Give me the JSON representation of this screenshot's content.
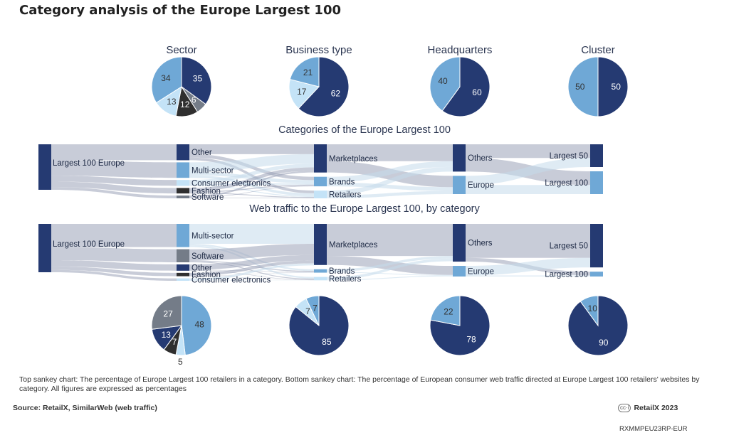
{
  "title": "Category analysis of the Europe Largest 100",
  "colors": {
    "dark_navy": "#253a72",
    "medium_blue": "#6fa8d6",
    "light_blue": "#c4e3f7",
    "black": "#2f2f2f",
    "gray": "#747c88",
    "flow_gray": "#9aa3b8",
    "flow_light": "#c4dbeb"
  },
  "chart_data": [
    {
      "type": "pie",
      "title": "Sector",
      "slices": [
        {
          "label": "35",
          "value": 35,
          "color": "#253a72"
        },
        {
          "label": "6",
          "value": 6,
          "color": "#747c88"
        },
        {
          "label": "12",
          "value": 12,
          "color": "#2f2f2f"
        },
        {
          "label": "13",
          "value": 13,
          "color": "#c4e3f7"
        },
        {
          "label": "34",
          "value": 34,
          "color": "#6fa8d6"
        }
      ]
    },
    {
      "type": "pie",
      "title": "Business type",
      "slices": [
        {
          "label": "62",
          "value": 62,
          "color": "#253a72"
        },
        {
          "label": "17",
          "value": 17,
          "color": "#c4e3f7"
        },
        {
          "label": "21",
          "value": 21,
          "color": "#6fa8d6"
        }
      ]
    },
    {
      "type": "pie",
      "title": "Headquarters",
      "slices": [
        {
          "label": "60",
          "value": 60,
          "color": "#253a72"
        },
        {
          "label": "40",
          "value": 40,
          "color": "#6fa8d6"
        }
      ]
    },
    {
      "type": "pie",
      "title": "Cluster",
      "slices": [
        {
          "label": "50",
          "value": 50,
          "color": "#253a72"
        },
        {
          "label": "50",
          "value": 50,
          "color": "#6fa8d6"
        }
      ]
    },
    {
      "type": "sankey",
      "title": "Categories of the Europe Largest 100",
      "stages": [
        [
          {
            "label": "Largest 100 Europe",
            "value": 100,
            "color": "#253a72"
          }
        ],
        [
          {
            "label": "Other",
            "value": 35,
            "color": "#253a72"
          },
          {
            "label": "Multi-sector",
            "value": 34,
            "color": "#6fa8d6"
          },
          {
            "label": "Consumer electronics",
            "value": 13,
            "color": "#c4e3f7"
          },
          {
            "label": "Fashion",
            "value": 12,
            "color": "#2f2f2f"
          },
          {
            "label": "Software",
            "value": 6,
            "color": "#747c88"
          }
        ],
        [
          {
            "label": "Marketplaces",
            "value": 62,
            "color": "#253a72"
          },
          {
            "label": "Brands",
            "value": 21,
            "color": "#6fa8d6"
          },
          {
            "label": "Retailers",
            "value": 17,
            "color": "#c4e3f7"
          }
        ],
        [
          {
            "label": "Others",
            "value": 60,
            "color": "#253a72"
          },
          {
            "label": "Europe",
            "value": 40,
            "color": "#6fa8d6"
          }
        ],
        [
          {
            "label": "Largest 50",
            "value": 50,
            "color": "#253a72"
          },
          {
            "label": "Largest 100",
            "value": 50,
            "color": "#6fa8d6"
          }
        ]
      ]
    },
    {
      "type": "sankey",
      "title": "Web traffic to the Europe Largest 100, by category",
      "stages": [
        [
          {
            "label": "Largest 100 Europe",
            "value": 100,
            "color": "#253a72"
          }
        ],
        [
          {
            "label": "Multi-sector",
            "value": 48,
            "color": "#6fa8d6"
          },
          {
            "label": "Software",
            "value": 27,
            "color": "#747c88"
          },
          {
            "label": "Other",
            "value": 13,
            "color": "#253a72"
          },
          {
            "label": "Fashion",
            "value": 7,
            "color": "#2f2f2f"
          },
          {
            "label": "Consumer electronics",
            "value": 5,
            "color": "#c4e3f7"
          }
        ],
        [
          {
            "label": "Marketplaces",
            "value": 85,
            "color": "#253a72"
          },
          {
            "label": "Brands",
            "value": 7,
            "color": "#6fa8d6"
          },
          {
            "label": "Retailers",
            "value": 7,
            "color": "#c4e3f7"
          }
        ],
        [
          {
            "label": "Others",
            "value": 78,
            "color": "#253a72"
          },
          {
            "label": "Europe",
            "value": 22,
            "color": "#6fa8d6"
          }
        ],
        [
          {
            "label": "Largest 50",
            "value": 90,
            "color": "#253a72"
          },
          {
            "label": "Largest 100",
            "value": 10,
            "color": "#6fa8d6"
          }
        ]
      ]
    },
    {
      "type": "pie",
      "title": "",
      "slices": [
        {
          "label": "48",
          "value": 48,
          "color": "#6fa8d6"
        },
        {
          "label": "5",
          "value": 5,
          "color": "#c4e3f7"
        },
        {
          "label": "7",
          "value": 7,
          "color": "#2f2f2f"
        },
        {
          "label": "13",
          "value": 13,
          "color": "#253a72"
        },
        {
          "label": "27",
          "value": 27,
          "color": "#747c88"
        }
      ]
    },
    {
      "type": "pie",
      "title": "",
      "slices": [
        {
          "label": "85",
          "value": 85,
          "color": "#253a72"
        },
        {
          "label": "7",
          "value": 7,
          "color": "#c4e3f7"
        },
        {
          "label": "7",
          "value": 7,
          "color": "#6fa8d6"
        }
      ]
    },
    {
      "type": "pie",
      "title": "",
      "slices": [
        {
          "label": "78",
          "value": 78,
          "color": "#253a72"
        },
        {
          "label": "22",
          "value": 22,
          "color": "#6fa8d6"
        }
      ]
    },
    {
      "type": "pie",
      "title": "",
      "slices": [
        {
          "label": "90",
          "value": 90,
          "color": "#253a72"
        },
        {
          "label": "10",
          "value": 10,
          "color": "#6fa8d6"
        }
      ]
    }
  ],
  "footnote": "Top sankey chart: The percentage of Europe Largest 100 retailers in a category. Bottom sankey chart: The percentage of European consumer web traffic directed at Europe Largest 100 retailers' websites by category. All figures are expressed as percentages",
  "source": "Source: RetailX, SimilarWeb (web traffic)",
  "brand": "RetailX 2023",
  "license_icon": "creative-commons-icon",
  "code": "RXMMPEU23RP-EUR"
}
